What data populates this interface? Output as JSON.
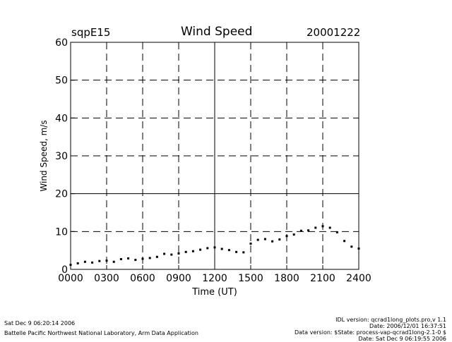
{
  "header": {
    "site": "sqpE15",
    "title": "Wind Speed",
    "date": "20001222"
  },
  "footer": {
    "left_line1": "Sat Dec  9 06:20:14 2006",
    "left_line2": "Battelle Pacific Northwest National Laboratory, Arm Data Application",
    "right_lines": [
      "IDL version: qcrad1long_plots.pro,v 1.1",
      "Date: 2006/12/01 16:37:51",
      "Data version: $State: process-vap-qcrad1long-2.1-0 $",
      "Date: Sat Dec  9 06:19:55 2006"
    ]
  },
  "chart_data": {
    "type": "scatter",
    "title": "Wind Speed",
    "xlabel": "Time (UT)",
    "ylabel": "Wind Speed, m/s",
    "xlim": [
      0,
      2400
    ],
    "ylim": [
      0,
      60
    ],
    "xticks": [
      "0000",
      "0300",
      "0600",
      "0900",
      "1200",
      "1500",
      "1800",
      "2100",
      "2400"
    ],
    "yticks": [
      "0",
      "10",
      "20",
      "30",
      "40",
      "50",
      "60"
    ],
    "grid": "dashed at major ticks; solid at 1200 UT and 20 m/s",
    "marker_color": "#000000",
    "x": [
      0,
      60,
      120,
      180,
      240,
      300,
      360,
      420,
      480,
      540,
      600,
      660,
      720,
      780,
      840,
      900,
      960,
      1020,
      1080,
      1140,
      1200,
      1260,
      1320,
      1380,
      1440,
      1500,
      1560,
      1620,
      1680,
      1740,
      1800,
      1860,
      1920,
      1980,
      2040,
      2100,
      2160,
      2220,
      2280,
      2340,
      2400
    ],
    "y": [
      1.2,
      1.6,
      2.0,
      1.8,
      2.2,
      2.3,
      2.0,
      2.7,
      2.9,
      2.5,
      2.8,
      3.0,
      3.3,
      4.1,
      3.9,
      4.2,
      4.6,
      4.8,
      5.2,
      5.6,
      5.8,
      5.4,
      5.1,
      4.6,
      4.5,
      6.8,
      7.8,
      8.0,
      7.4,
      7.9,
      8.8,
      9.2,
      10.2,
      10.3,
      11.0,
      11.4,
      11.0,
      9.8,
      7.5,
      6.0,
      5.5
    ]
  }
}
